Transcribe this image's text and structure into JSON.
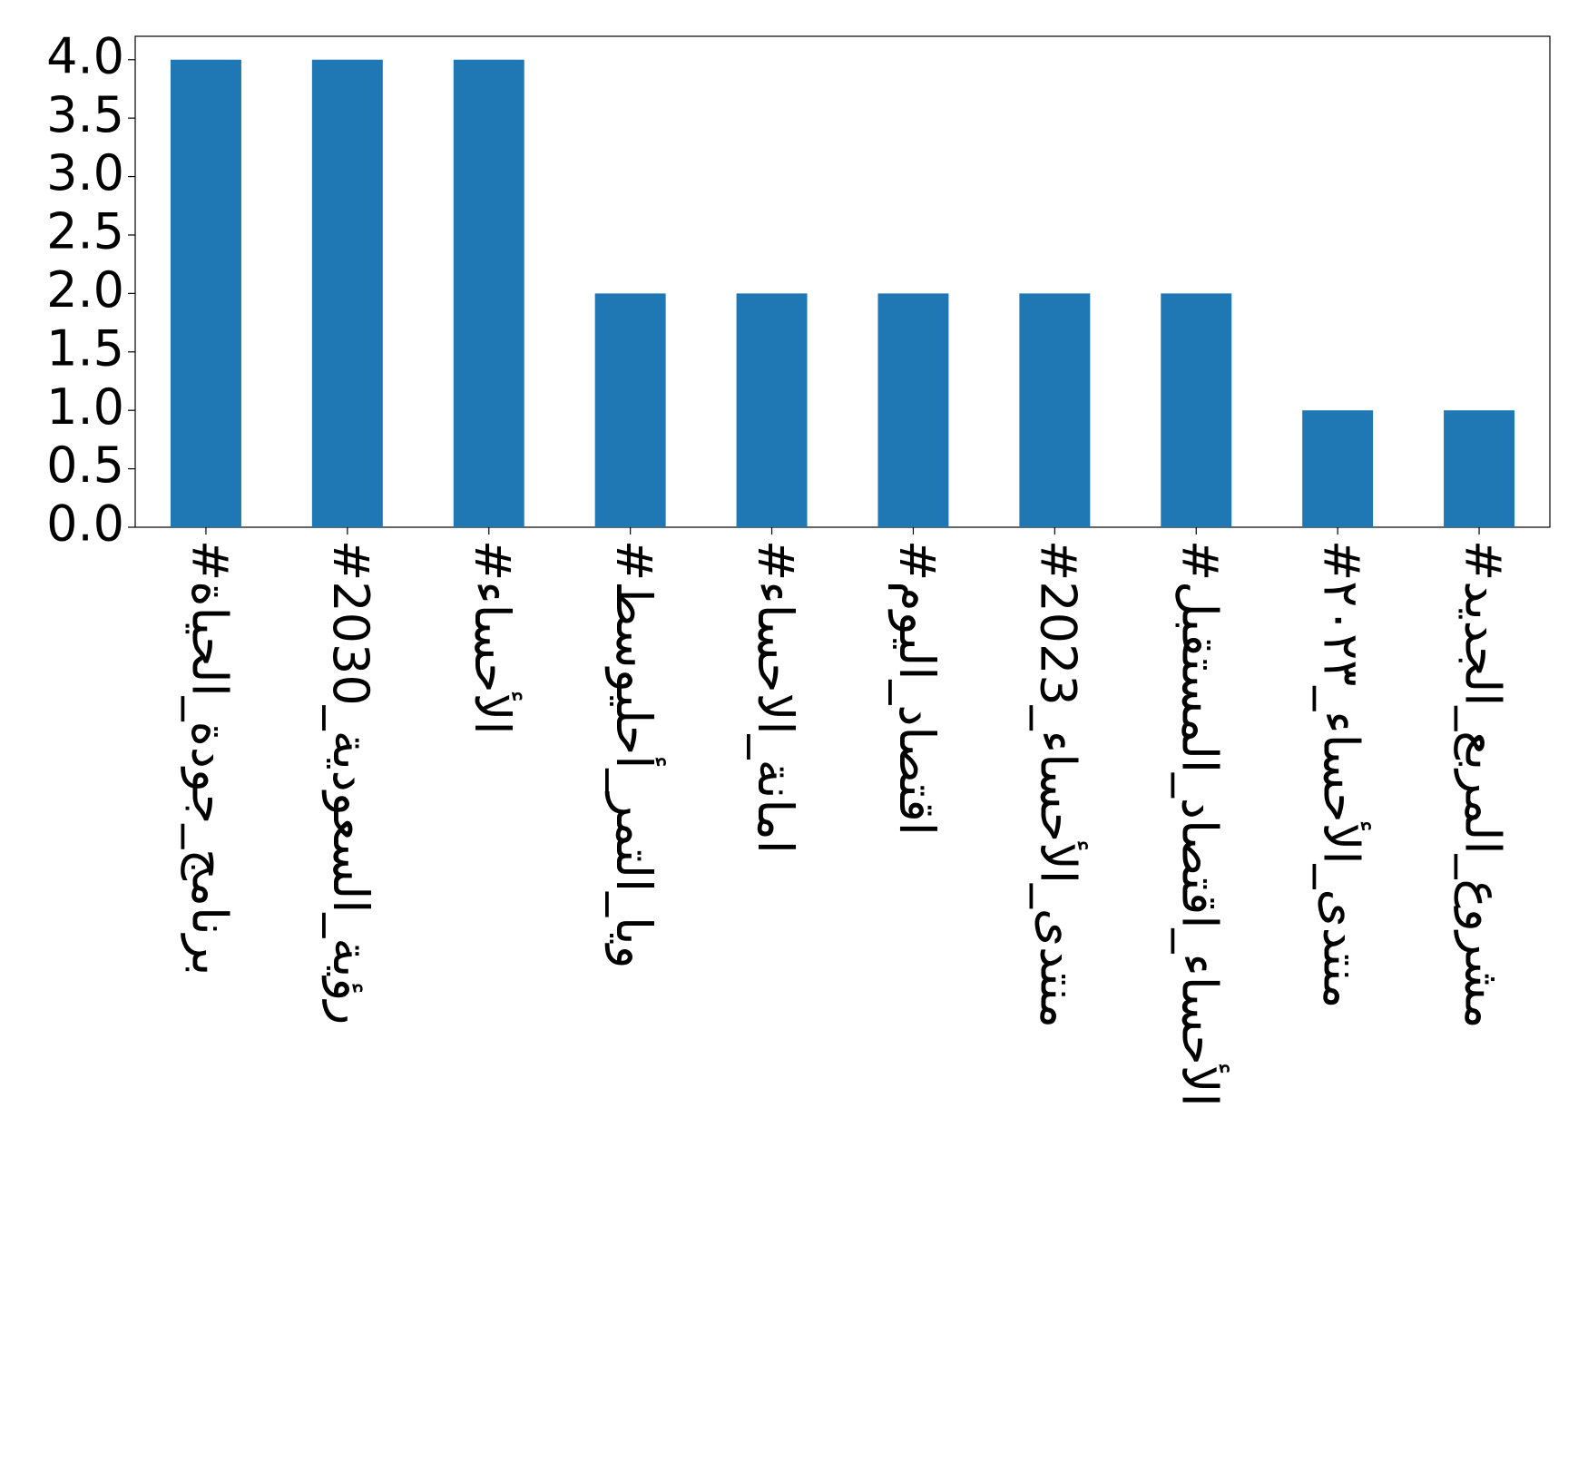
{
  "chart_data": {
    "type": "bar",
    "categories": [
      "#برنامج_جودة_الحياة",
      "#رؤية_السعودية_2030",
      "#الأحساء",
      "#ويا_التمر_أحليوسط",
      "#امانة_الاحساء",
      "#اقتصاد_اليوم",
      "#منتدى_الأحساء_2023",
      "#الأحساء_اقتصاد_المستقبل",
      "#منتدى_الأحساء_٢٠٢٣",
      "#مشروع_المربع_الجديد"
    ],
    "values": [
      4,
      4,
      4,
      2,
      2,
      2,
      2,
      2,
      1,
      1
    ],
    "color": "#1f77b4",
    "ylim": [
      0,
      4.2
    ],
    "yticks": [
      {
        "value": 0,
        "label": "0.0"
      },
      {
        "value": 0.5,
        "label": "0.5"
      },
      {
        "value": 1,
        "label": "1.0"
      },
      {
        "value": 1.5,
        "label": "1.5"
      },
      {
        "value": 2,
        "label": "2.0"
      },
      {
        "value": 2.5,
        "label": "2.5"
      },
      {
        "value": 3,
        "label": "3.0"
      },
      {
        "value": 3.5,
        "label": "3.5"
      },
      {
        "value": 4,
        "label": "4.0"
      }
    ],
    "grid": false
  }
}
